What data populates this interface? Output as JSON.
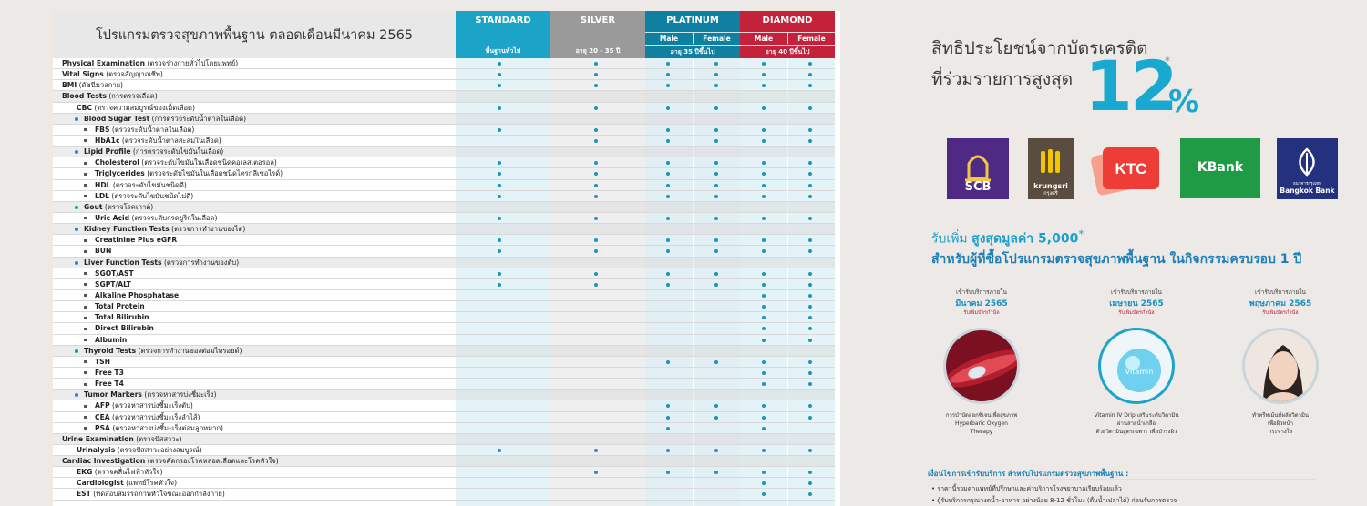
{
  "table": {
    "title": "โปรแกรมตรวจสุขภาพพื้นฐาน ตลอดเดือนมีนาคม 2565",
    "columns": {
      "standard": {
        "name": "STANDARD",
        "sub": "พื้นฐานทั่วไป"
      },
      "silver": {
        "name": "SILVER",
        "sub": "อายุ 20 - 35 ปี"
      },
      "platinum": {
        "name": "PLATINUM",
        "male": "Male",
        "female": "Female",
        "sub": "อายุ 35 ปีขึ้นไป"
      },
      "diamond": {
        "name": "DIAMOND",
        "male": "Male",
        "female": "Female",
        "sub": "อายุ 40 ปีขึ้นไป"
      }
    },
    "rows": [
      {
        "bold": "Physical Examination",
        "rest": " (ตรวจร่างกายทั่วไปโดยแพทย์)",
        "lvl": 0,
        "dots": [
          1,
          1,
          1,
          1,
          1,
          1
        ]
      },
      {
        "bold": "Vital Signs",
        "rest": " (ตรวจสัญญาณชีพ)",
        "lvl": 0,
        "dots": [
          1,
          1,
          1,
          1,
          1,
          1
        ]
      },
      {
        "bold": "BMI",
        "rest": " (ดัชนีมวลกาย)",
        "lvl": 0,
        "dots": [
          1,
          1,
          1,
          1,
          1,
          1
        ]
      },
      {
        "bold": "Blood Tests",
        "rest": " (การตรวจเลือด)",
        "lvl": 0,
        "shade": true,
        "dots": [
          0,
          0,
          0,
          0,
          0,
          0
        ]
      },
      {
        "bold": "CBC",
        "rest": " (ตรวจความสมบูรณ์ของเม็ดเลือด)",
        "lvl": 1,
        "dots": [
          1,
          1,
          1,
          1,
          1,
          1
        ]
      },
      {
        "bold": "Blood Sugar Test",
        "rest": " (การตรวจระดับน้ำตาลในเลือด)",
        "lvl": 2,
        "shade": true,
        "dots": [
          0,
          0,
          0,
          0,
          0,
          0
        ]
      },
      {
        "bold": "FBS",
        "rest": " (ตรวจระดับน้ำตาลในเลือด)",
        "lvl": 3,
        "dots": [
          1,
          1,
          1,
          1,
          1,
          1
        ]
      },
      {
        "bold": "HbA1c",
        "rest": " (ตรวจระดับน้ำตาลสะสมในเลือด)",
        "lvl": 3,
        "dots": [
          0,
          1,
          1,
          1,
          1,
          1
        ]
      },
      {
        "bold": "Lipid  Profile",
        "rest": " (การตรวจระดับไขมันในเลือด)",
        "lvl": 2,
        "shade": true,
        "dots": [
          0,
          0,
          0,
          0,
          0,
          0
        ]
      },
      {
        "bold": "Cholesterol",
        "rest": " (ตรวจระดับไขมันในเลือดชนิดคอเลสเตอรอล)",
        "lvl": 3,
        "dots": [
          1,
          1,
          1,
          1,
          1,
          1
        ]
      },
      {
        "bold": "Triglycerides",
        "rest": " (ตรวจระดับไขมันในเลือดชนิดไตรกลีเซอไรด์)",
        "lvl": 3,
        "dots": [
          1,
          1,
          1,
          1,
          1,
          1
        ]
      },
      {
        "bold": "HDL",
        "rest": " (ตรวจระดับไขมันชนิดดี)",
        "lvl": 3,
        "dots": [
          1,
          1,
          1,
          1,
          1,
          1
        ]
      },
      {
        "bold": "LDL",
        "rest": " (ตรวจระดับไขมันชนิดไม่ดี)",
        "lvl": 3,
        "dots": [
          1,
          1,
          1,
          1,
          1,
          1
        ]
      },
      {
        "bold": "Gout",
        "rest": " (ตรวจโรคเกาต์)",
        "lvl": 2,
        "shade": true,
        "dots": [
          0,
          0,
          0,
          0,
          0,
          0
        ]
      },
      {
        "bold": "Uric Acid",
        "rest": " (ตรวจระดับกรดยูริกในเลือด)",
        "lvl": 3,
        "dots": [
          1,
          1,
          1,
          1,
          1,
          1
        ]
      },
      {
        "bold": "Kidney Function Tests",
        "rest": " (ตรวจการทำงานของไต)",
        "lvl": 2,
        "shade": true,
        "dots": [
          0,
          0,
          0,
          0,
          0,
          0
        ]
      },
      {
        "bold": "Creatinine Plus eGFR",
        "rest": "",
        "lvl": 3,
        "dots": [
          1,
          1,
          1,
          1,
          1,
          1
        ]
      },
      {
        "bold": "BUN",
        "rest": "",
        "lvl": 3,
        "dots": [
          1,
          1,
          1,
          1,
          1,
          1
        ]
      },
      {
        "bold": "Liver Function Tests",
        "rest": " (ตรวจการทำงานของตับ)",
        "lvl": 2,
        "shade": true,
        "dots": [
          0,
          0,
          0,
          0,
          0,
          0
        ]
      },
      {
        "bold": "SGOT/AST",
        "rest": "",
        "lvl": 3,
        "dots": [
          1,
          1,
          1,
          1,
          1,
          1
        ]
      },
      {
        "bold": "SGPT/ALT",
        "rest": "",
        "lvl": 3,
        "dots": [
          1,
          1,
          1,
          1,
          1,
          1
        ]
      },
      {
        "bold": "Alkaline Phosphatase",
        "rest": "",
        "lvl": 3,
        "dots": [
          0,
          0,
          0,
          0,
          1,
          1
        ]
      },
      {
        "bold": "Total Protein",
        "rest": "",
        "lvl": 3,
        "dots": [
          0,
          0,
          0,
          0,
          1,
          1
        ]
      },
      {
        "bold": "Total Bilirubin",
        "rest": "",
        "lvl": 3,
        "dots": [
          0,
          0,
          0,
          0,
          1,
          1
        ]
      },
      {
        "bold": "Direct Bilirubin",
        "rest": "",
        "lvl": 3,
        "dots": [
          0,
          0,
          0,
          0,
          1,
          1
        ]
      },
      {
        "bold": "Albumin",
        "rest": "",
        "lvl": 3,
        "dots": [
          0,
          0,
          0,
          0,
          1,
          1
        ]
      },
      {
        "bold": "Thyroid Tests",
        "rest": " (ตรวจการทำงานของต่อมไทรอยด์)",
        "lvl": 2,
        "shade": true,
        "dots": [
          0,
          0,
          0,
          0,
          0,
          0
        ]
      },
      {
        "bold": "TSH",
        "rest": "",
        "lvl": 3,
        "dots": [
          0,
          0,
          1,
          1,
          1,
          1
        ]
      },
      {
        "bold": "Free T3",
        "rest": "",
        "lvl": 3,
        "dots": [
          0,
          0,
          0,
          0,
          1,
          1
        ]
      },
      {
        "bold": "Free T4",
        "rest": "",
        "lvl": 3,
        "dots": [
          0,
          0,
          0,
          0,
          1,
          1
        ]
      },
      {
        "bold": "Tumor Markers",
        "rest": " (ตรวจหาสารบ่งชี้มะเร็ง)",
        "lvl": 2,
        "shade": true,
        "dots": [
          0,
          0,
          0,
          0,
          0,
          0
        ]
      },
      {
        "bold": "AFP",
        "rest": " (ตรวจหาสารบ่งชี้มะเร็งตับ)",
        "lvl": 3,
        "dots": [
          0,
          0,
          1,
          1,
          1,
          1
        ]
      },
      {
        "bold": "CEA",
        "rest": " (ตรวจหาสารบ่งชี้มะเร็งลำไส้)",
        "lvl": 3,
        "dots": [
          0,
          0,
          1,
          1,
          1,
          1
        ]
      },
      {
        "bold": "PSA",
        "rest": " (ตรวจหาสารบ่งชี้มะเร็งต่อมลูกหมาก)",
        "lvl": 3,
        "dots": [
          0,
          0,
          1,
          0,
          1,
          0
        ]
      },
      {
        "bold": "Urine Examination",
        "rest": " (ตรวจปัสสาวะ)",
        "lvl": 0,
        "shade": true,
        "dots": [
          0,
          0,
          0,
          0,
          0,
          0
        ]
      },
      {
        "bold": "Urinalysis",
        "rest": " (ตรวจปัสสาวะอย่างสมบูรณ์)",
        "lvl": 1,
        "dots": [
          1,
          1,
          1,
          1,
          1,
          1
        ]
      },
      {
        "bold": "Cardiac Investigation",
        "rest": " (ตรวจคัดกรองโรคหลอดเลือดและโรคหัวใจ)",
        "lvl": 0,
        "shade": true,
        "dots": [
          0,
          0,
          0,
          0,
          0,
          0
        ]
      },
      {
        "bold": "EKG",
        "rest": " (ตรวจคลื่นไฟฟ้าหัวใจ)",
        "lvl": 1,
        "dots": [
          0,
          1,
          1,
          1,
          1,
          1
        ]
      },
      {
        "bold": "Cardiologist",
        "rest": " (แพทย์โรคหัวใจ)",
        "lvl": 1,
        "dots": [
          0,
          0,
          0,
          0,
          1,
          1
        ]
      },
      {
        "bold": "EST",
        "rest": " (ทดสอบสมรรถภาพหัวใจขณะออกกำลังกาย)",
        "lvl": 1,
        "dots": [
          0,
          0,
          0,
          0,
          1,
          1
        ]
      }
    ]
  },
  "promo": {
    "line1": "สิทธิประโยชน์จากบัตรเครดิต",
    "line2": "ที่ร่วมรายการสูงสุด",
    "big_number": "12",
    "percent": "%",
    "asterisk": "*",
    "banks": {
      "scb": "SCB",
      "krungsri": "krungsri",
      "krungsri_sub": "กรุงศรี",
      "ktc": "KTC",
      "kbank": "KBank",
      "bbl_sub": "ธนาคารกรุงเทพ",
      "bbl": "Bangkok Bank"
    },
    "bonus_prefix": "รับเพิ่ม ",
    "bonus_value": "สูงสุดมูลค่า 5,000",
    "bonus_ast": "*",
    "bonus_line2": "สำหรับผู้ที่ซื้อโปรแกรมตรวจสุขภาพพื้นฐาน  ในกิจกรรมครบรอบ 1 ปี",
    "months": [
      {
        "pre": "เข้ารับบริการภายใน",
        "month": "มีนาคม 2565",
        "note": "รับเพิ่มบัตรกำนัล",
        "caption": [
          "การบำบัดออกซิเจนเพื่อสุขภาพ",
          "Hyperbaric Oxygen",
          "Therapy"
        ]
      },
      {
        "pre": "เข้ารับบริการภายใน",
        "month": "เมษายน 2565",
        "note": "รับเพิ่มบัตรกำนัล",
        "caption": [
          "Vitamin IV Drip เสริมระดับวิตามิน",
          "ผ่านสายน้ำเกลือ",
          "ด้วยวิตามินสูตรเฉพาะ เพื่อบำรุงผิว"
        ]
      },
      {
        "pre": "เข้ารับบริการภายใน",
        "month": "พฤษภาคม 2565",
        "note": "รับเพิ่มบัตรกำนัล",
        "caption": [
          "ทำทรีทเม้นท์ผลักวิตามิน",
          "เพื่อผิวหน้า",
          "กระจ่างใส"
        ]
      }
    ],
    "vitamin_label": "Vitamin",
    "conditions_title": "เงื่อนไขการเข้ารับบริการ สำหรับโปรแกรมตรวจสุขภาพพื้นฐาน :",
    "conditions": [
      "ราคานี้รวมค่าแพทย์ที่ปรึกษาและค่าบริการโรงพยาบาลเรียบร้อยแล้ว",
      "ผู้รับบริการกรุณางดน้ำ-อาหาร อย่างน้อย 8-12 ชั่วโมง (ดื่มน้ำเปล่าได้) ก่อนรับการตรวจ"
    ],
    "colors": {
      "accent": "#19a8d0",
      "standard": "#1ba4c7",
      "silver": "#9a9a9a",
      "platinum": "#0f7fa2",
      "diamond": "#c4213a"
    }
  }
}
